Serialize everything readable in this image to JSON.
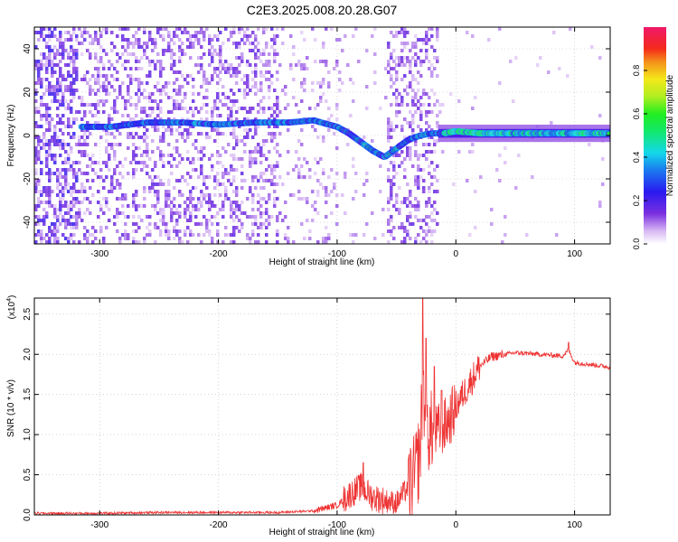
{
  "title": "C2E3.2025.008.20.28.G07",
  "colors": {
    "snr_line": "#ee3333",
    "background": "#ffffff",
    "axis": "#000000",
    "grid": "#bbbbbb"
  },
  "colorbar": {
    "label": "Normalized spectral amplitude",
    "ticks": [
      "0.0",
      "0.2",
      "0.4",
      "0.6",
      "0.8"
    ],
    "tick_values": [
      0.0,
      0.2,
      0.4,
      0.6,
      0.8
    ],
    "range": [
      0,
      1
    ],
    "colormap": "rainbow (purple-blue-cyan-green-yellow-red-magenta)"
  },
  "chart_data": [
    {
      "type": "heatmap",
      "name": "spectrogram",
      "xlabel": "Height of straight line (km)",
      "ylabel": "Frequency (Hz)",
      "xlim": [
        -355,
        130
      ],
      "ylim": [
        -50,
        50
      ],
      "xticks": [
        "-300",
        "-200",
        "-100",
        "0",
        "100"
      ],
      "xtick_values": [
        -300,
        -200,
        -100,
        0,
        100
      ],
      "yticks": [
        "-40",
        "-20",
        "0",
        "20",
        "40"
      ],
      "ytick_values": [
        -40,
        -20,
        0,
        20,
        40
      ],
      "grid": true,
      "ridge": {
        "description": "dominant signal frequency vs height",
        "x": [
          -315,
          -290,
          -260,
          -230,
          -200,
          -170,
          -140,
          -120,
          -100,
          -90,
          -80,
          -70,
          -60,
          -50,
          -40,
          -30,
          -20,
          -10,
          0,
          20,
          60,
          100,
          130
        ],
        "y": [
          4,
          4,
          6,
          6,
          5,
          6,
          6,
          7,
          4,
          1,
          -3,
          -7,
          -10,
          -6,
          -2,
          0,
          1,
          1,
          2,
          1,
          1,
          1,
          1
        ]
      }
    },
    {
      "type": "line",
      "name": "snr",
      "xlabel": "Height of straight line (km)",
      "ylabel": "SNR (10 * v/v)",
      "yscale_label": "(x10",
      "yscale_exp": "4",
      "y_multiplier": 10000,
      "xlim": [
        -355,
        130
      ],
      "ylim": [
        0,
        2.7
      ],
      "xticks": [
        "-300",
        "-200",
        "-100",
        "0",
        "100"
      ],
      "xtick_values": [
        -300,
        -200,
        -100,
        0,
        100
      ],
      "yticks": [
        "0.0",
        "0.5",
        "1.0",
        "1.5",
        "2.0",
        "2.5"
      ],
      "ytick_values": [
        0.0,
        0.5,
        1.0,
        1.5,
        2.0,
        2.5
      ],
      "grid": true,
      "x": [
        -355,
        -300,
        -250,
        -200,
        -150,
        -120,
        -100,
        -90,
        -80,
        -70,
        -60,
        -50,
        -45,
        -40,
        -35,
        -30,
        -28,
        -25,
        -20,
        -15,
        -10,
        -5,
        0,
        10,
        20,
        30,
        50,
        70,
        90,
        95,
        100,
        110,
        120,
        130
      ],
      "y": [
        0.02,
        0.02,
        0.03,
        0.03,
        0.03,
        0.05,
        0.12,
        0.25,
        0.35,
        0.22,
        0.18,
        0.15,
        0.25,
        0.35,
        0.45,
        0.8,
        1.6,
        1.1,
        1.0,
        1.05,
        1.1,
        1.2,
        1.35,
        1.6,
        1.85,
        1.97,
        2.02,
        2.0,
        1.98,
        2.05,
        1.9,
        1.88,
        1.86,
        1.84
      ],
      "spikes": [
        {
          "x": -28,
          "y": 2.75
        },
        {
          "x": -25,
          "y": 2.2
        },
        {
          "x": -18,
          "y": 1.85
        },
        {
          "x": -12,
          "y": 1.55
        },
        {
          "x": -78,
          "y": 0.65
        },
        {
          "x": 95,
          "y": 2.15
        }
      ]
    }
  ]
}
